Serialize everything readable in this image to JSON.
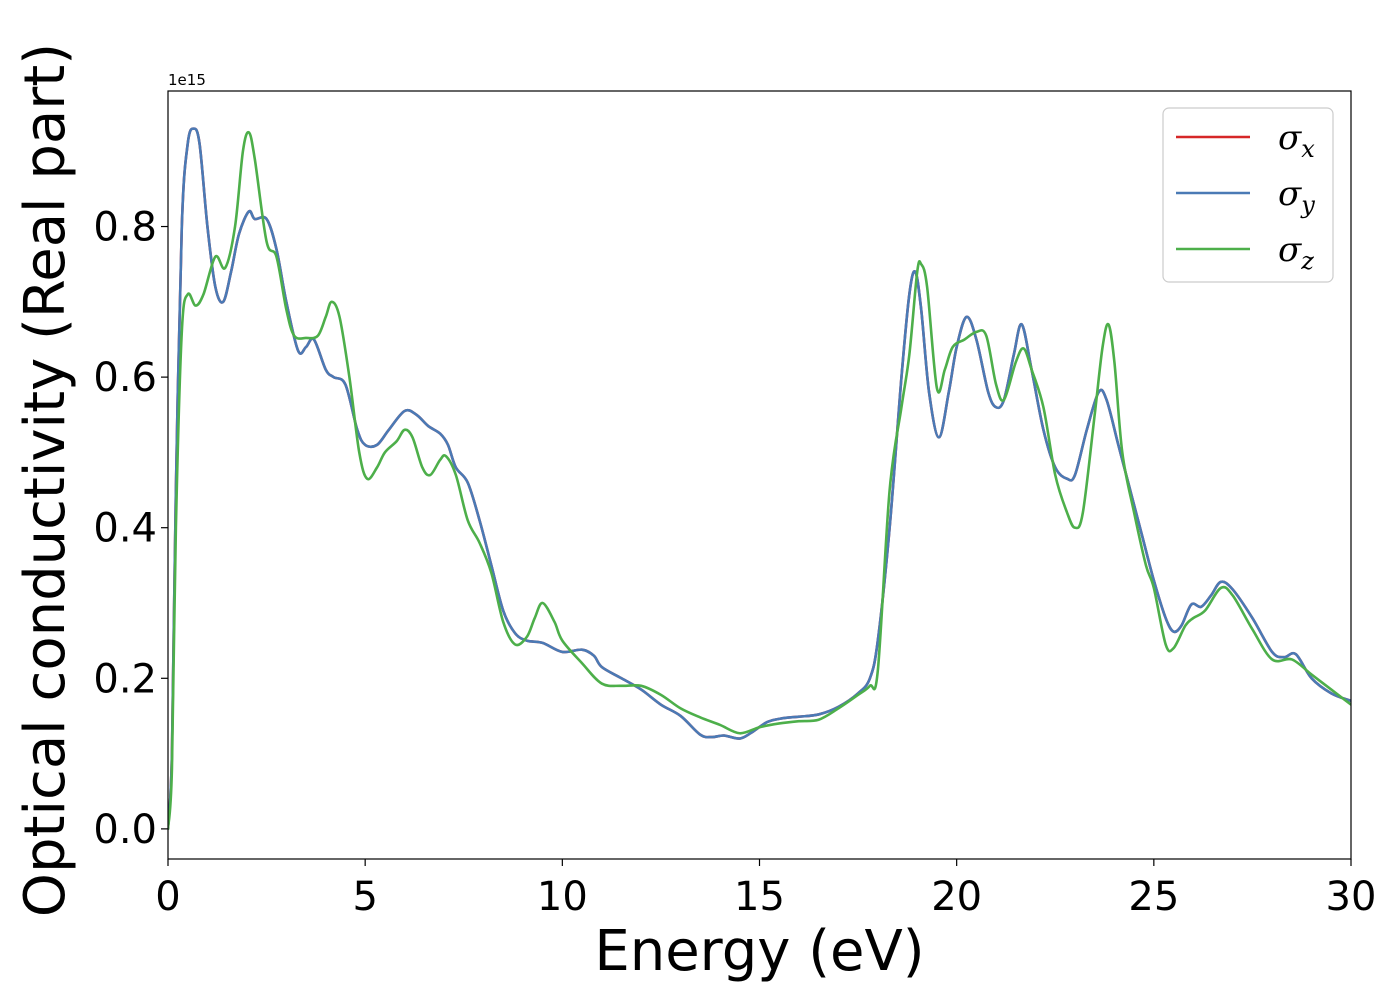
{
  "chart_data": {
    "type": "line",
    "xlabel": "Energy (eV)",
    "ylabel": "Optical conductivity (Real part)",
    "y_offset_label": "1e15",
    "xlim": [
      0,
      30
    ],
    "ylim": [
      -0.04,
      0.98
    ],
    "x_ticks": [
      0,
      5,
      10,
      15,
      20,
      25,
      30
    ],
    "x_tick_labels": [
      "0",
      "5",
      "10",
      "15",
      "20",
      "25",
      "30"
    ],
    "y_ticks": [
      0.0,
      0.2,
      0.4,
      0.6,
      0.8
    ],
    "y_tick_labels": [
      "0.0",
      "0.2",
      "0.4",
      "0.6",
      "0.8"
    ],
    "grid": false,
    "legend_position": "top-right",
    "colors": {
      "sigma_x": "#d62728",
      "sigma_y": "#4a7ab5",
      "sigma_z": "#4daf4a"
    },
    "series": [
      {
        "name": "σx",
        "symbol": "σ",
        "subscript": "x",
        "color": "#d62728",
        "points": [
          [
            0,
            0
          ],
          [
            0.1,
            0.1
          ],
          [
            0.2,
            0.45
          ],
          [
            0.35,
            0.8
          ],
          [
            0.5,
            0.91
          ],
          [
            0.65,
            0.93
          ],
          [
            0.8,
            0.91
          ],
          [
            1.0,
            0.8
          ],
          [
            1.2,
            0.72
          ],
          [
            1.4,
            0.7
          ],
          [
            1.6,
            0.74
          ],
          [
            1.8,
            0.79
          ],
          [
            2.05,
            0.82
          ],
          [
            2.2,
            0.81
          ],
          [
            2.5,
            0.81
          ],
          [
            2.75,
            0.77
          ],
          [
            3.0,
            0.7
          ],
          [
            3.3,
            0.635
          ],
          [
            3.5,
            0.64
          ],
          [
            3.7,
            0.65
          ],
          [
            4.0,
            0.61
          ],
          [
            4.2,
            0.6
          ],
          [
            4.5,
            0.59
          ],
          [
            4.8,
            0.53
          ],
          [
            5.0,
            0.51
          ],
          [
            5.3,
            0.51
          ],
          [
            5.6,
            0.53
          ],
          [
            6.0,
            0.555
          ],
          [
            6.3,
            0.55
          ],
          [
            6.6,
            0.535
          ],
          [
            6.9,
            0.525
          ],
          [
            7.1,
            0.51
          ],
          [
            7.3,
            0.48
          ],
          [
            7.6,
            0.46
          ],
          [
            7.9,
            0.41
          ],
          [
            8.2,
            0.35
          ],
          [
            8.5,
            0.29
          ],
          [
            8.8,
            0.26
          ],
          [
            9.1,
            0.25
          ],
          [
            9.5,
            0.247
          ],
          [
            10.0,
            0.235
          ],
          [
            10.5,
            0.238
          ],
          [
            10.8,
            0.23
          ],
          [
            11.0,
            0.215
          ],
          [
            11.5,
            0.2
          ],
          [
            12.0,
            0.185
          ],
          [
            12.5,
            0.165
          ],
          [
            13.0,
            0.15
          ],
          [
            13.5,
            0.125
          ],
          [
            13.8,
            0.122
          ],
          [
            14.1,
            0.124
          ],
          [
            14.5,
            0.12
          ],
          [
            14.8,
            0.128
          ],
          [
            15.2,
            0.142
          ],
          [
            15.6,
            0.147
          ],
          [
            16.0,
            0.149
          ],
          [
            16.5,
            0.152
          ],
          [
            17.0,
            0.162
          ],
          [
            17.5,
            0.18
          ],
          [
            17.8,
            0.2
          ],
          [
            18.0,
            0.25
          ],
          [
            18.3,
            0.4
          ],
          [
            18.6,
            0.6
          ],
          [
            18.8,
            0.71
          ],
          [
            18.95,
            0.74
          ],
          [
            19.1,
            0.69
          ],
          [
            19.3,
            0.58
          ],
          [
            19.55,
            0.52
          ],
          [
            19.8,
            0.58
          ],
          [
            20.0,
            0.64
          ],
          [
            20.25,
            0.68
          ],
          [
            20.5,
            0.65
          ],
          [
            20.8,
            0.58
          ],
          [
            21.0,
            0.56
          ],
          [
            21.2,
            0.57
          ],
          [
            21.45,
            0.63
          ],
          [
            21.65,
            0.67
          ],
          [
            21.9,
            0.61
          ],
          [
            22.2,
            0.53
          ],
          [
            22.5,
            0.48
          ],
          [
            22.8,
            0.465
          ],
          [
            23.0,
            0.47
          ],
          [
            23.3,
            0.53
          ],
          [
            23.6,
            0.58
          ],
          [
            23.8,
            0.57
          ],
          [
            24.1,
            0.51
          ],
          [
            24.4,
            0.45
          ],
          [
            24.7,
            0.39
          ],
          [
            25.0,
            0.33
          ],
          [
            25.3,
            0.28
          ],
          [
            25.5,
            0.262
          ],
          [
            25.7,
            0.27
          ],
          [
            25.95,
            0.298
          ],
          [
            26.2,
            0.295
          ],
          [
            26.45,
            0.31
          ],
          [
            26.7,
            0.328
          ],
          [
            27.0,
            0.318
          ],
          [
            27.5,
            0.28
          ],
          [
            28.0,
            0.235
          ],
          [
            28.3,
            0.228
          ],
          [
            28.6,
            0.232
          ],
          [
            29.0,
            0.2
          ],
          [
            29.5,
            0.18
          ],
          [
            30.0,
            0.17
          ]
        ]
      },
      {
        "name": "σy",
        "symbol": "σ",
        "subscript": "y",
        "color": "#4a7ab5",
        "points": [
          [
            0,
            0
          ],
          [
            0.1,
            0.1
          ],
          [
            0.2,
            0.45
          ],
          [
            0.35,
            0.8
          ],
          [
            0.5,
            0.91
          ],
          [
            0.65,
            0.93
          ],
          [
            0.8,
            0.91
          ],
          [
            1.0,
            0.8
          ],
          [
            1.2,
            0.72
          ],
          [
            1.4,
            0.7
          ],
          [
            1.6,
            0.74
          ],
          [
            1.8,
            0.79
          ],
          [
            2.05,
            0.82
          ],
          [
            2.2,
            0.81
          ],
          [
            2.5,
            0.81
          ],
          [
            2.75,
            0.77
          ],
          [
            3.0,
            0.7
          ],
          [
            3.3,
            0.635
          ],
          [
            3.5,
            0.64
          ],
          [
            3.7,
            0.65
          ],
          [
            4.0,
            0.61
          ],
          [
            4.2,
            0.6
          ],
          [
            4.5,
            0.59
          ],
          [
            4.8,
            0.53
          ],
          [
            5.0,
            0.51
          ],
          [
            5.3,
            0.51
          ],
          [
            5.6,
            0.53
          ],
          [
            6.0,
            0.555
          ],
          [
            6.3,
            0.55
          ],
          [
            6.6,
            0.535
          ],
          [
            6.9,
            0.525
          ],
          [
            7.1,
            0.51
          ],
          [
            7.3,
            0.48
          ],
          [
            7.6,
            0.46
          ],
          [
            7.9,
            0.41
          ],
          [
            8.2,
            0.35
          ],
          [
            8.5,
            0.29
          ],
          [
            8.8,
            0.26
          ],
          [
            9.1,
            0.25
          ],
          [
            9.5,
            0.247
          ],
          [
            10.0,
            0.235
          ],
          [
            10.5,
            0.238
          ],
          [
            10.8,
            0.23
          ],
          [
            11.0,
            0.215
          ],
          [
            11.5,
            0.2
          ],
          [
            12.0,
            0.185
          ],
          [
            12.5,
            0.165
          ],
          [
            13.0,
            0.15
          ],
          [
            13.5,
            0.125
          ],
          [
            13.8,
            0.122
          ],
          [
            14.1,
            0.124
          ],
          [
            14.5,
            0.12
          ],
          [
            14.8,
            0.128
          ],
          [
            15.2,
            0.142
          ],
          [
            15.6,
            0.147
          ],
          [
            16.0,
            0.149
          ],
          [
            16.5,
            0.152
          ],
          [
            17.0,
            0.162
          ],
          [
            17.5,
            0.18
          ],
          [
            17.8,
            0.2
          ],
          [
            18.0,
            0.25
          ],
          [
            18.3,
            0.4
          ],
          [
            18.6,
            0.6
          ],
          [
            18.8,
            0.71
          ],
          [
            18.95,
            0.74
          ],
          [
            19.1,
            0.69
          ],
          [
            19.3,
            0.58
          ],
          [
            19.55,
            0.52
          ],
          [
            19.8,
            0.58
          ],
          [
            20.0,
            0.64
          ],
          [
            20.25,
            0.68
          ],
          [
            20.5,
            0.65
          ],
          [
            20.8,
            0.58
          ],
          [
            21.0,
            0.56
          ],
          [
            21.2,
            0.57
          ],
          [
            21.45,
            0.63
          ],
          [
            21.65,
            0.67
          ],
          [
            21.9,
            0.61
          ],
          [
            22.2,
            0.53
          ],
          [
            22.5,
            0.48
          ],
          [
            22.8,
            0.465
          ],
          [
            23.0,
            0.47
          ],
          [
            23.3,
            0.53
          ],
          [
            23.6,
            0.58
          ],
          [
            23.8,
            0.57
          ],
          [
            24.1,
            0.51
          ],
          [
            24.4,
            0.45
          ],
          [
            24.7,
            0.39
          ],
          [
            25.0,
            0.33
          ],
          [
            25.3,
            0.28
          ],
          [
            25.5,
            0.262
          ],
          [
            25.7,
            0.27
          ],
          [
            25.95,
            0.298
          ],
          [
            26.2,
            0.295
          ],
          [
            26.45,
            0.31
          ],
          [
            26.7,
            0.328
          ],
          [
            27.0,
            0.318
          ],
          [
            27.5,
            0.28
          ],
          [
            28.0,
            0.235
          ],
          [
            28.3,
            0.228
          ],
          [
            28.6,
            0.232
          ],
          [
            29.0,
            0.2
          ],
          [
            29.5,
            0.18
          ],
          [
            30.0,
            0.17
          ]
        ]
      },
      {
        "name": "σz",
        "symbol": "σ",
        "subscript": "z",
        "color": "#4daf4a",
        "points": [
          [
            0,
            0
          ],
          [
            0.1,
            0.08
          ],
          [
            0.2,
            0.4
          ],
          [
            0.35,
            0.66
          ],
          [
            0.5,
            0.71
          ],
          [
            0.7,
            0.695
          ],
          [
            0.9,
            0.71
          ],
          [
            1.2,
            0.76
          ],
          [
            1.45,
            0.745
          ],
          [
            1.7,
            0.8
          ],
          [
            1.9,
            0.9
          ],
          [
            2.05,
            0.925
          ],
          [
            2.2,
            0.89
          ],
          [
            2.5,
            0.78
          ],
          [
            2.75,
            0.76
          ],
          [
            3.0,
            0.69
          ],
          [
            3.2,
            0.655
          ],
          [
            3.5,
            0.652
          ],
          [
            3.8,
            0.655
          ],
          [
            4.0,
            0.68
          ],
          [
            4.15,
            0.7
          ],
          [
            4.35,
            0.68
          ],
          [
            4.6,
            0.6
          ],
          [
            4.85,
            0.5
          ],
          [
            5.05,
            0.465
          ],
          [
            5.3,
            0.48
          ],
          [
            5.5,
            0.5
          ],
          [
            5.8,
            0.515
          ],
          [
            6.0,
            0.53
          ],
          [
            6.2,
            0.52
          ],
          [
            6.45,
            0.48
          ],
          [
            6.65,
            0.47
          ],
          [
            6.9,
            0.49
          ],
          [
            7.05,
            0.495
          ],
          [
            7.3,
            0.47
          ],
          [
            7.6,
            0.41
          ],
          [
            7.9,
            0.38
          ],
          [
            8.2,
            0.34
          ],
          [
            8.5,
            0.275
          ],
          [
            8.8,
            0.245
          ],
          [
            9.1,
            0.255
          ],
          [
            9.3,
            0.28
          ],
          [
            9.5,
            0.3
          ],
          [
            9.8,
            0.275
          ],
          [
            10.0,
            0.25
          ],
          [
            10.5,
            0.22
          ],
          [
            11.0,
            0.193
          ],
          [
            11.5,
            0.19
          ],
          [
            12.0,
            0.19
          ],
          [
            12.5,
            0.178
          ],
          [
            13.0,
            0.16
          ],
          [
            13.5,
            0.148
          ],
          [
            14.0,
            0.138
          ],
          [
            14.5,
            0.127
          ],
          [
            15.0,
            0.135
          ],
          [
            15.5,
            0.14
          ],
          [
            16.0,
            0.143
          ],
          [
            16.5,
            0.145
          ],
          [
            17.0,
            0.16
          ],
          [
            17.5,
            0.178
          ],
          [
            17.8,
            0.19
          ],
          [
            18.0,
            0.21
          ],
          [
            18.3,
            0.45
          ],
          [
            18.6,
            0.56
          ],
          [
            18.8,
            0.63
          ],
          [
            19.0,
            0.74
          ],
          [
            19.1,
            0.75
          ],
          [
            19.25,
            0.72
          ],
          [
            19.5,
            0.585
          ],
          [
            19.7,
            0.61
          ],
          [
            19.9,
            0.64
          ],
          [
            20.2,
            0.65
          ],
          [
            20.5,
            0.66
          ],
          [
            20.75,
            0.655
          ],
          [
            21.0,
            0.59
          ],
          [
            21.2,
            0.57
          ],
          [
            21.5,
            0.62
          ],
          [
            21.7,
            0.638
          ],
          [
            21.9,
            0.61
          ],
          [
            22.2,
            0.56
          ],
          [
            22.5,
            0.47
          ],
          [
            22.8,
            0.42
          ],
          [
            23.0,
            0.4
          ],
          [
            23.2,
            0.42
          ],
          [
            23.5,
            0.55
          ],
          [
            23.7,
            0.64
          ],
          [
            23.85,
            0.67
          ],
          [
            24.0,
            0.62
          ],
          [
            24.2,
            0.5
          ],
          [
            24.5,
            0.42
          ],
          [
            24.8,
            0.35
          ],
          [
            25.0,
            0.32
          ],
          [
            25.3,
            0.245
          ],
          [
            25.5,
            0.24
          ],
          [
            25.8,
            0.27
          ],
          [
            26.0,
            0.28
          ],
          [
            26.3,
            0.29
          ],
          [
            26.7,
            0.32
          ],
          [
            27.0,
            0.31
          ],
          [
            27.5,
            0.265
          ],
          [
            28.0,
            0.225
          ],
          [
            28.5,
            0.225
          ],
          [
            29.0,
            0.205
          ],
          [
            29.5,
            0.185
          ],
          [
            30.0,
            0.165
          ]
        ]
      }
    ]
  }
}
